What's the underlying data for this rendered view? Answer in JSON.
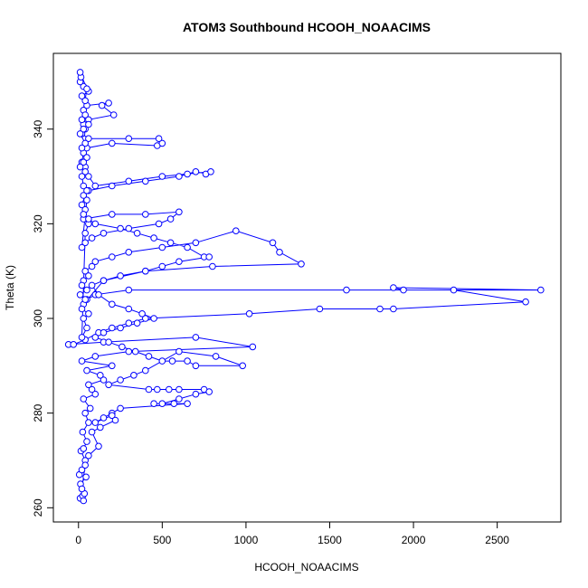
{
  "chart_data": {
    "type": "line",
    "title": "ATOM3 Southbound HCOOH_NOAACIMS",
    "xlabel": "HCOOH_NOAACIMS",
    "ylabel": "Theta (K)",
    "xlim": [
      -150,
      2880
    ],
    "ylim": [
      257,
      356
    ],
    "x_ticks": [
      0,
      500,
      1000,
      1500,
      2000,
      2500
    ],
    "y_ticks": [
      260,
      280,
      300,
      320,
      340
    ],
    "grid": false,
    "legend": "none",
    "marker": "open-circle",
    "series_color": "#0000ff",
    "series": [
      {
        "name": "",
        "points": [
          [
            10,
            262
          ],
          [
            25,
            262.5
          ],
          [
            35,
            263
          ],
          [
            12,
            265
          ],
          [
            45,
            266.5
          ],
          [
            5,
            267
          ],
          [
            20,
            268
          ],
          [
            40,
            270
          ],
          [
            15,
            272
          ],
          [
            30,
            272.5
          ],
          [
            50,
            274
          ],
          [
            25,
            276
          ],
          [
            60,
            278
          ],
          [
            40,
            280
          ],
          [
            70,
            281
          ],
          [
            30,
            283
          ],
          [
            100,
            284
          ],
          [
            80,
            285
          ],
          [
            60,
            286
          ],
          [
            150,
            287
          ],
          [
            130,
            288
          ],
          [
            50,
            289
          ],
          [
            200,
            290
          ],
          [
            20,
            291
          ],
          [
            100,
            292
          ],
          [
            300,
            293
          ],
          [
            1040,
            294
          ],
          [
            700,
            296
          ],
          [
            150,
            295
          ],
          [
            -60,
            294.5
          ],
          [
            -30,
            294.5
          ],
          [
            40,
            295.5
          ],
          [
            120,
            297
          ],
          [
            200,
            298
          ],
          [
            300,
            299
          ],
          [
            400,
            300
          ],
          [
            1020,
            301
          ],
          [
            1440,
            302
          ],
          [
            1800,
            302
          ],
          [
            1880,
            302
          ],
          [
            2670,
            303.5
          ],
          [
            2240,
            306
          ],
          [
            1940,
            306
          ],
          [
            1880,
            306.5
          ],
          [
            2760,
            306
          ],
          [
            1600,
            306
          ],
          [
            300,
            306
          ],
          [
            100,
            305
          ],
          [
            50,
            304
          ],
          [
            30,
            303
          ],
          [
            150,
            308
          ],
          [
            400,
            310
          ],
          [
            800,
            311
          ],
          [
            1330,
            311.5
          ],
          [
            1200,
            314
          ],
          [
            1160,
            316
          ],
          [
            940,
            318.5
          ],
          [
            700,
            316
          ],
          [
            500,
            315
          ],
          [
            300,
            314
          ],
          [
            200,
            313
          ],
          [
            100,
            312
          ],
          [
            80,
            311
          ],
          [
            40,
            310
          ],
          [
            60,
            309
          ],
          [
            30,
            308
          ],
          [
            20,
            307
          ],
          [
            50,
            306
          ],
          [
            10,
            305
          ],
          [
            40,
            304
          ],
          [
            20,
            302
          ],
          [
            60,
            301
          ],
          [
            30,
            300
          ],
          [
            50,
            298
          ],
          [
            20,
            296
          ],
          [
            40,
            318
          ],
          [
            60,
            320
          ],
          [
            30,
            321
          ],
          [
            200,
            322
          ],
          [
            400,
            322
          ],
          [
            600,
            322.5
          ],
          [
            550,
            321
          ],
          [
            480,
            320
          ],
          [
            300,
            319
          ],
          [
            150,
            318
          ],
          [
            80,
            317
          ],
          [
            40,
            316
          ],
          [
            20,
            315
          ],
          [
            50,
            325
          ],
          [
            30,
            326
          ],
          [
            60,
            327
          ],
          [
            200,
            328
          ],
          [
            400,
            329
          ],
          [
            600,
            330
          ],
          [
            650,
            330.5
          ],
          [
            700,
            331
          ],
          [
            760,
            330.5
          ],
          [
            790,
            331
          ],
          [
            500,
            330
          ],
          [
            300,
            329
          ],
          [
            100,
            328
          ],
          [
            60,
            330
          ],
          [
            40,
            332
          ],
          [
            20,
            333
          ],
          [
            30,
            335
          ],
          [
            50,
            336
          ],
          [
            200,
            337
          ],
          [
            470,
            336.5
          ],
          [
            500,
            337
          ],
          [
            480,
            338
          ],
          [
            300,
            338
          ],
          [
            60,
            338
          ],
          [
            20,
            339
          ],
          [
            40,
            340
          ],
          [
            30,
            341
          ],
          [
            60,
            342
          ],
          [
            210,
            343
          ],
          [
            140,
            345
          ],
          [
            180,
            345.5
          ],
          [
            50,
            345
          ],
          [
            40,
            346
          ],
          [
            20,
            347
          ],
          [
            60,
            348
          ],
          [
            30,
            349
          ],
          [
            10,
            350
          ],
          [
            15,
            351
          ],
          [
            10,
            352
          ],
          [
            50,
            348.5
          ],
          [
            30,
            344
          ],
          [
            40,
            343
          ],
          [
            20,
            342
          ],
          [
            60,
            341
          ],
          [
            30,
            340
          ],
          [
            10,
            339
          ],
          [
            40,
            337
          ],
          [
            20,
            336
          ],
          [
            50,
            334
          ],
          [
            30,
            333
          ],
          [
            10,
            332
          ],
          [
            40,
            331
          ],
          [
            20,
            330
          ],
          [
            30,
            328
          ],
          [
            50,
            327
          ],
          [
            20,
            324
          ],
          [
            40,
            323
          ],
          [
            30,
            322
          ],
          [
            60,
            321
          ],
          [
            100,
            320
          ],
          [
            250,
            319
          ],
          [
            350,
            318
          ],
          [
            450,
            317
          ],
          [
            550,
            316
          ],
          [
            650,
            315
          ],
          [
            750,
            313
          ],
          [
            780,
            313
          ],
          [
            600,
            312
          ],
          [
            500,
            311
          ],
          [
            400,
            310
          ],
          [
            250,
            309
          ],
          [
            150,
            308
          ],
          [
            80,
            307
          ],
          [
            120,
            305
          ],
          [
            200,
            303
          ],
          [
            300,
            302
          ],
          [
            380,
            301
          ],
          [
            450,
            300
          ],
          [
            350,
            299
          ],
          [
            250,
            298
          ],
          [
            150,
            297
          ],
          [
            100,
            296
          ],
          [
            180,
            295
          ],
          [
            260,
            294
          ],
          [
            340,
            293
          ],
          [
            420,
            292
          ],
          [
            500,
            291
          ],
          [
            560,
            291
          ],
          [
            650,
            291
          ],
          [
            700,
            290
          ],
          [
            980,
            290
          ],
          [
            820,
            292
          ],
          [
            600,
            293
          ],
          [
            400,
            289
          ],
          [
            330,
            288
          ],
          [
            250,
            287
          ],
          [
            180,
            286
          ],
          [
            420,
            285
          ],
          [
            470,
            285
          ],
          [
            540,
            285
          ],
          [
            600,
            285
          ],
          [
            750,
            285
          ],
          [
            780,
            284.5
          ],
          [
            700,
            284
          ],
          [
            600,
            283
          ],
          [
            500,
            282
          ],
          [
            450,
            282
          ],
          [
            570,
            282
          ],
          [
            650,
            282
          ],
          [
            250,
            281
          ],
          [
            200,
            280
          ],
          [
            150,
            279
          ],
          [
            100,
            278
          ],
          [
            200,
            279.5
          ],
          [
            220,
            278.5
          ],
          [
            130,
            277
          ],
          [
            80,
            276
          ],
          [
            120,
            273
          ],
          [
            60,
            271
          ],
          [
            40,
            269
          ],
          [
            20,
            264
          ],
          [
            30,
            261.5
          ]
        ]
      }
    ]
  }
}
